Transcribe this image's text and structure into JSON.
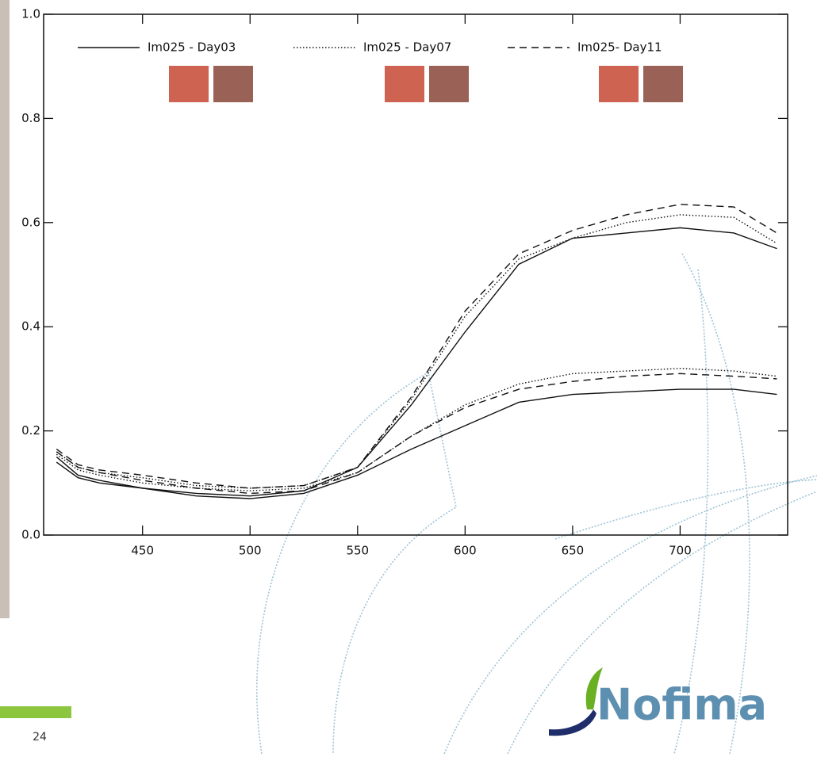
{
  "chart_data": {
    "type": "line",
    "x": [
      410,
      420,
      430,
      450,
      475,
      500,
      525,
      550,
      575,
      600,
      625,
      650,
      675,
      700,
      725,
      745
    ],
    "xlim": [
      404,
      750
    ],
    "xticks": [
      450,
      500,
      550,
      600,
      650,
      700
    ],
    "ylim": [
      0,
      1
    ],
    "yticks": [
      {
        "value": 0,
        "label": "0.0"
      },
      0.2,
      0.4,
      0.6,
      0.8,
      {
        "value": 1,
        "label": "1.0"
      }
    ],
    "series": [
      {
        "name": "Im025 - Day03",
        "color": "#111111",
        "dash": "solid",
        "swatches": [
          "#cd6350",
          "#9a6156"
        ],
        "values": [
          0.15,
          0.115,
          0.105,
          0.09,
          0.08,
          0.075,
          0.085,
          0.13,
          0.25,
          0.39,
          0.52,
          0.57,
          0.58,
          0.59,
          0.58,
          0.55
        ],
        "lower_values": [
          0.14,
          0.11,
          0.1,
          0.09,
          0.075,
          0.07,
          0.08,
          0.115,
          0.165,
          0.21,
          0.255,
          0.27,
          0.275,
          0.28,
          0.28,
          0.27
        ]
      },
      {
        "name": "Im025 - Day07",
        "color": "#111111",
        "dash": "dotted",
        "swatches": [
          "#cd6350",
          "#9a6156"
        ],
        "values": [
          0.16,
          0.13,
          0.12,
          0.11,
          0.095,
          0.09,
          0.095,
          0.13,
          0.26,
          0.42,
          0.53,
          0.57,
          0.6,
          0.615,
          0.61,
          0.56
        ],
        "lower_values": [
          0.155,
          0.125,
          0.115,
          0.1,
          0.09,
          0.085,
          0.09,
          0.12,
          0.19,
          0.25,
          0.29,
          0.31,
          0.315,
          0.32,
          0.315,
          0.305
        ]
      },
      {
        "name": "Im025- Day11",
        "color": "#111111",
        "dash": "dashed",
        "swatches": [
          "#cd6350",
          "#9a6156"
        ],
        "values": [
          0.165,
          0.135,
          0.125,
          0.115,
          0.1,
          0.09,
          0.095,
          0.13,
          0.265,
          0.43,
          0.54,
          0.585,
          0.615,
          0.635,
          0.63,
          0.58
        ],
        "lower_values": [
          0.16,
          0.13,
          0.12,
          0.105,
          0.09,
          0.08,
          0.085,
          0.12,
          0.19,
          0.245,
          0.28,
          0.295,
          0.305,
          0.31,
          0.305,
          0.3
        ]
      }
    ]
  },
  "footer": {
    "page_number": "24",
    "logo": "Nofima"
  }
}
